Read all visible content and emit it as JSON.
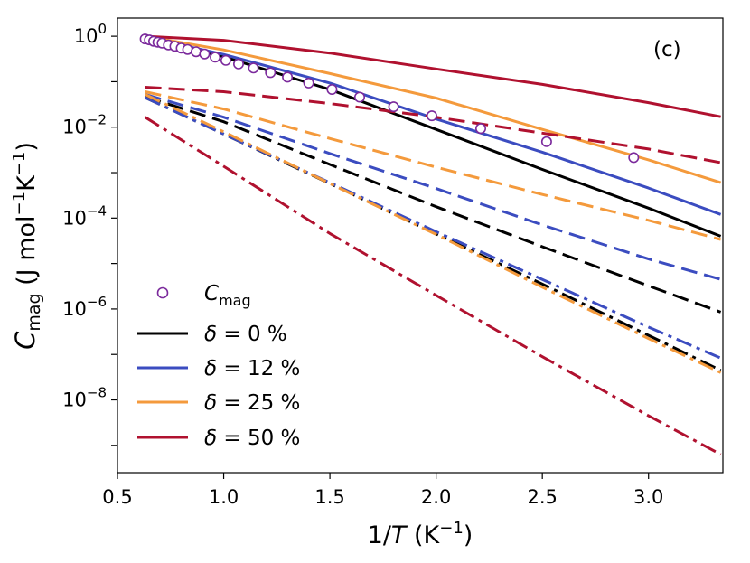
{
  "chart_data": {
    "type": "line",
    "panel_label": "(c)",
    "xlabel": {
      "prefix": "1/",
      "var": "T",
      "unit": " (K",
      "unit_exp": "−1",
      "close": ")"
    },
    "ylabel": {
      "var": "C",
      "sub": "mag",
      "unit": " (J mol",
      "exp1": "−1",
      "mid": "K",
      "exp2": "−1",
      "close": ")"
    },
    "xlim": [
      0.5,
      3.35
    ],
    "ylim_log10": [
      -9.6,
      0.4
    ],
    "yscale": "log",
    "grid": false,
    "legend_position": "lower-left",
    "x_ticks": [
      {
        "value": 0.5,
        "label": "0.5"
      },
      {
        "value": 1.0,
        "label": "1.0"
      },
      {
        "value": 1.5,
        "label": "1.5"
      },
      {
        "value": 2.0,
        "label": "2.0"
      },
      {
        "value": 2.5,
        "label": "2.5"
      },
      {
        "value": 3.0,
        "label": "3.0"
      }
    ],
    "y_ticks": [
      {
        "log10": 0,
        "base": "10",
        "exp": "0"
      },
      {
        "log10": -2,
        "base": "10",
        "exp": "−2"
      },
      {
        "log10": -4,
        "base": "10",
        "exp": "−4"
      },
      {
        "log10": -6,
        "base": "10",
        "exp": "−6"
      },
      {
        "log10": -8,
        "base": "10",
        "exp": "−8"
      }
    ],
    "legend": [
      {
        "kind": "marker",
        "label_var": "C",
        "label_sub": "mag",
        "color": "#7b2a9c"
      },
      {
        "kind": "line",
        "label_var": "δ",
        "label_text": " = 0 %",
        "color": "#000000"
      },
      {
        "kind": "line",
        "label_var": "δ",
        "label_text": " = 12 %",
        "color": "#3b4cc0"
      },
      {
        "kind": "line",
        "label_var": "δ",
        "label_text": " = 25 %",
        "color": "#f49a3c"
      },
      {
        "kind": "line",
        "label_var": "δ",
        "label_text": " = 50 %",
        "color": "#b0112f"
      }
    ],
    "scatter": {
      "name": "C_mag",
      "color": "#7b2a9c",
      "x": [
        0.63,
        0.65,
        0.67,
        0.69,
        0.71,
        0.74,
        0.77,
        0.8,
        0.83,
        0.87,
        0.91,
        0.96,
        1.01,
        1.07,
        1.14,
        1.22,
        1.3,
        1.4,
        1.51,
        1.64,
        1.8,
        1.98,
        2.21,
        2.52,
        2.93
      ],
      "log10_y": [
        -0.06,
        -0.08,
        -0.11,
        -0.13,
        -0.15,
        -0.19,
        -0.22,
        -0.26,
        -0.29,
        -0.34,
        -0.39,
        -0.46,
        -0.53,
        -0.61,
        -0.7,
        -0.8,
        -0.9,
        -1.03,
        -1.17,
        -1.34,
        -1.55,
        -1.75,
        -2.03,
        -2.32,
        -2.67
      ]
    },
    "series": [
      {
        "name": "δ = 0 %",
        "color": "#000000",
        "style": "solid",
        "x": [
          0.63,
          1.0,
          1.5,
          2.0,
          2.5,
          3.0,
          3.34
        ],
        "log10_y": [
          -0.03,
          -0.45,
          -1.17,
          -2.05,
          -2.93,
          -3.78,
          -4.4
        ]
      },
      {
        "name": "δ = 12 %",
        "color": "#3b4cc0",
        "style": "solid",
        "x": [
          0.63,
          1.0,
          1.5,
          2.0,
          2.5,
          3.0,
          3.34
        ],
        "log10_y": [
          -0.02,
          -0.4,
          -1.03,
          -1.82,
          -2.55,
          -3.34,
          -3.92
        ]
      },
      {
        "name": "δ = 25 %",
        "color": "#f49a3c",
        "style": "solid",
        "x": [
          0.63,
          1.0,
          1.5,
          2.0,
          2.5,
          3.0,
          3.34
        ],
        "log10_y": [
          0.0,
          -0.3,
          -0.82,
          -1.36,
          -2.05,
          -2.72,
          -3.22
        ]
      },
      {
        "name": "δ = 50 %",
        "color": "#b0112f",
        "style": "solid",
        "x": [
          0.63,
          1.0,
          1.5,
          2.0,
          2.5,
          3.0,
          3.34
        ],
        "log10_y": [
          0.0,
          -0.09,
          -0.37,
          -0.72,
          -1.06,
          -1.46,
          -1.77
        ]
      },
      {
        "name": "δ = 0 % (dashed)",
        "color": "#000000",
        "style": "dash",
        "x": [
          0.63,
          1.0,
          1.5,
          2.0,
          2.5,
          3.0,
          3.34
        ],
        "log10_y": [
          -1.33,
          -1.88,
          -2.82,
          -3.75,
          -4.63,
          -5.49,
          -6.07
        ]
      },
      {
        "name": "δ = 12 % (dashed)",
        "color": "#3b4cc0",
        "style": "dash",
        "x": [
          0.63,
          1.0,
          1.5,
          2.0,
          2.5,
          3.0,
          3.34
        ],
        "log10_y": [
          -1.28,
          -1.78,
          -2.58,
          -3.35,
          -4.15,
          -4.9,
          -5.35
        ]
      },
      {
        "name": "δ = 25 % (dashed)",
        "color": "#f49a3c",
        "style": "dash",
        "x": [
          0.63,
          1.0,
          1.5,
          2.0,
          2.5,
          3.0,
          3.34
        ],
        "log10_y": [
          -1.22,
          -1.6,
          -2.25,
          -2.88,
          -3.48,
          -4.05,
          -4.47
        ]
      },
      {
        "name": "δ = 50 % (dashed)",
        "color": "#b0112f",
        "style": "dash",
        "x": [
          0.63,
          1.0,
          1.5,
          2.0,
          2.5,
          3.0,
          3.34
        ],
        "log10_y": [
          -1.12,
          -1.22,
          -1.48,
          -1.78,
          -2.13,
          -2.48,
          -2.78
        ]
      },
      {
        "name": "δ = 0 % (dashdot)",
        "color": "#000000",
        "style": "dashdot",
        "x": [
          0.63,
          1.0,
          1.5,
          2.0,
          2.5,
          3.0,
          3.34
        ],
        "log10_y": [
          -1.35,
          -2.15,
          -3.24,
          -4.35,
          -5.45,
          -6.58,
          -7.35
        ]
      },
      {
        "name": "δ = 12 % (dashdot)",
        "color": "#3b4cc0",
        "style": "dashdot",
        "x": [
          0.63,
          1.0,
          1.5,
          2.0,
          2.5,
          3.0,
          3.34
        ],
        "log10_y": [
          -1.35,
          -2.15,
          -3.22,
          -4.3,
          -5.35,
          -6.4,
          -7.08
        ]
      },
      {
        "name": "δ = 25 % (dashdot)",
        "color": "#f49a3c",
        "style": "dashdot",
        "x": [
          0.63,
          1.0,
          1.5,
          2.0,
          2.5,
          3.0,
          3.34
        ],
        "log10_y": [
          -1.28,
          -2.1,
          -3.24,
          -4.36,
          -5.52,
          -6.65,
          -7.4
        ]
      },
      {
        "name": "δ = 50 % (dashdot)",
        "color": "#b0112f",
        "style": "dashdot",
        "x": [
          0.63,
          1.0,
          1.5,
          2.0,
          2.5,
          3.0,
          3.34
        ],
        "log10_y": [
          -1.78,
          -2.86,
          -4.34,
          -5.7,
          -7.05,
          -8.35,
          -9.2
        ]
      }
    ]
  }
}
